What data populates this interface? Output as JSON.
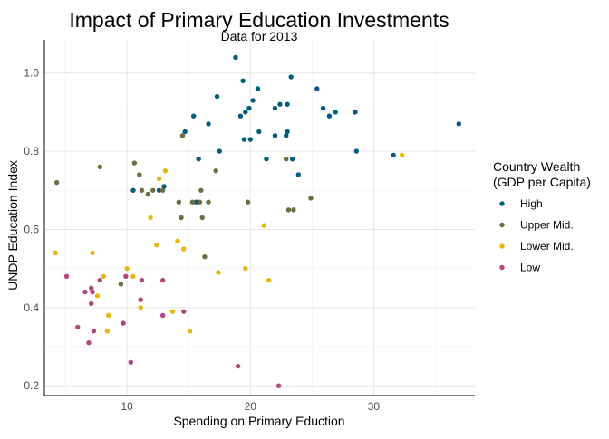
{
  "chart_data": {
    "type": "scatter",
    "title": "Impact of Primary Education Investments",
    "subtitle": "Data for 2013",
    "xlabel": "Spending on Primary Eduction",
    "ylabel": "UNDP Education Index",
    "xlim": [
      3.3,
      38.2
    ],
    "ylim": [
      0.175,
      1.085
    ],
    "x_ticks": [
      10,
      20,
      30
    ],
    "y_ticks": [
      0.2,
      0.4,
      0.6,
      0.8,
      1.0
    ],
    "y_tick_labels": [
      "0.2",
      "0.4",
      "0.6",
      "0.8",
      "1.0"
    ],
    "grid": true,
    "legend": {
      "title_lines": [
        "Country Wealth",
        "(GDP per Capita)"
      ],
      "position": "right"
    },
    "series": [
      {
        "name": "High",
        "color": "#045a7f",
        "points": [
          [
            18.8,
            1.04
          ],
          [
            19.4,
            0.98
          ],
          [
            20.2,
            0.93
          ],
          [
            20.6,
            0.96
          ],
          [
            23.3,
            0.99
          ],
          [
            25.4,
            0.96
          ],
          [
            17.3,
            0.94
          ],
          [
            22.0,
            0.91
          ],
          [
            22.4,
            0.92
          ],
          [
            23.0,
            0.92
          ],
          [
            19.9,
            0.91
          ],
          [
            19.6,
            0.9
          ],
          [
            19.2,
            0.89
          ],
          [
            15.4,
            0.89
          ],
          [
            25.9,
            0.91
          ],
          [
            26.4,
            0.89
          ],
          [
            26.9,
            0.9
          ],
          [
            28.5,
            0.9
          ],
          [
            14.7,
            0.85
          ],
          [
            16.6,
            0.87
          ],
          [
            19.5,
            0.83
          ],
          [
            20.0,
            0.83
          ],
          [
            20.7,
            0.85
          ],
          [
            22.0,
            0.84
          ],
          [
            22.9,
            0.84
          ],
          [
            23.0,
            0.85
          ],
          [
            36.9,
            0.87
          ],
          [
            17.5,
            0.8
          ],
          [
            28.6,
            0.8
          ],
          [
            31.6,
            0.79
          ],
          [
            21.3,
            0.78
          ],
          [
            23.4,
            0.78
          ],
          [
            15.8,
            0.78
          ],
          [
            23.9,
            0.74
          ],
          [
            12.6,
            0.7
          ],
          [
            13.0,
            0.71
          ],
          [
            10.5,
            0.7
          ],
          [
            15.6,
            0.67
          ]
        ]
      },
      {
        "name": "Upper Mid.",
        "color": "#6f6c40",
        "points": [
          [
            4.3,
            0.72
          ],
          [
            7.8,
            0.76
          ],
          [
            10.6,
            0.77
          ],
          [
            11.0,
            0.74
          ],
          [
            14.5,
            0.84
          ],
          [
            17.2,
            0.75
          ],
          [
            11.2,
            0.7
          ],
          [
            11.7,
            0.69
          ],
          [
            12.1,
            0.7
          ],
          [
            16.0,
            0.7
          ],
          [
            14.2,
            0.67
          ],
          [
            15.3,
            0.67
          ],
          [
            15.9,
            0.67
          ],
          [
            16.6,
            0.67
          ],
          [
            19.8,
            0.67
          ],
          [
            23.1,
            0.65
          ],
          [
            23.5,
            0.65
          ],
          [
            24.9,
            0.68
          ],
          [
            14.4,
            0.63
          ],
          [
            16.1,
            0.63
          ],
          [
            16.3,
            0.53
          ],
          [
            9.5,
            0.46
          ],
          [
            12.9,
            0.7
          ],
          [
            22.9,
            0.78
          ]
        ]
      },
      {
        "name": "Lower Mid.",
        "color": "#e8b70c",
        "points": [
          [
            13.1,
            0.75
          ],
          [
            12.6,
            0.73
          ],
          [
            32.3,
            0.79
          ],
          [
            11.9,
            0.63
          ],
          [
            21.1,
            0.61
          ],
          [
            4.2,
            0.54
          ],
          [
            7.2,
            0.54
          ],
          [
            12.4,
            0.56
          ],
          [
            14.1,
            0.57
          ],
          [
            14.6,
            0.55
          ],
          [
            17.4,
            0.49
          ],
          [
            19.6,
            0.5
          ],
          [
            10.0,
            0.5
          ],
          [
            10.5,
            0.48
          ],
          [
            21.5,
            0.47
          ],
          [
            8.1,
            0.48
          ],
          [
            7.6,
            0.43
          ],
          [
            8.5,
            0.38
          ],
          [
            11.1,
            0.4
          ],
          [
            8.4,
            0.34
          ],
          [
            13.7,
            0.39
          ],
          [
            15.1,
            0.34
          ]
        ]
      },
      {
        "name": "Low",
        "color": "#b3467f",
        "points": [
          [
            5.1,
            0.48
          ],
          [
            6.6,
            0.44
          ],
          [
            7.1,
            0.45
          ],
          [
            7.2,
            0.44
          ],
          [
            7.8,
            0.47
          ],
          [
            9.9,
            0.48
          ],
          [
            11.2,
            0.47
          ],
          [
            12.9,
            0.47
          ],
          [
            7.1,
            0.41
          ],
          [
            11.1,
            0.42
          ],
          [
            6.0,
            0.35
          ],
          [
            7.3,
            0.34
          ],
          [
            9.7,
            0.36
          ],
          [
            12.9,
            0.38
          ],
          [
            14.6,
            0.39
          ],
          [
            6.9,
            0.31
          ],
          [
            10.3,
            0.26
          ],
          [
            19.0,
            0.25
          ],
          [
            22.3,
            0.2
          ]
        ]
      }
    ]
  }
}
